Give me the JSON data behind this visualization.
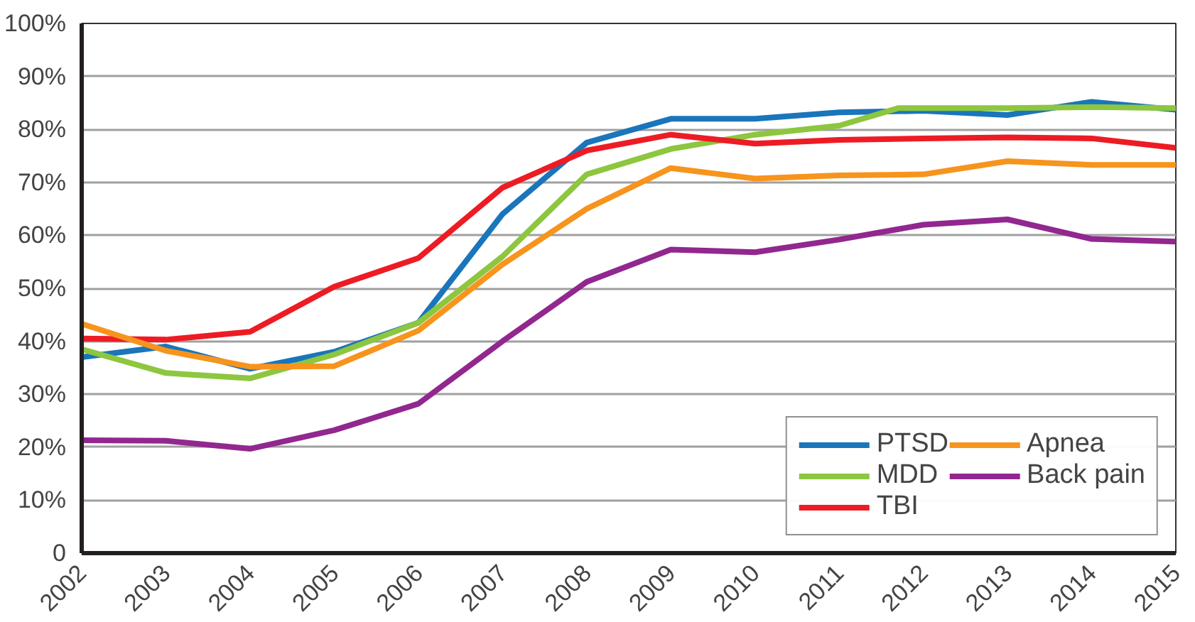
{
  "chart_data": {
    "type": "line",
    "x": [
      2002,
      2003,
      2004,
      2005,
      2006,
      2007,
      2008,
      2009,
      2010,
      2011,
      2012,
      2013,
      2014,
      2015
    ],
    "xlim": [
      2002,
      2015
    ],
    "xticks": [
      2002,
      2003,
      2004,
      2005,
      2006,
      2007,
      2008,
      2009,
      2010,
      2011,
      2012,
      2013,
      2014,
      2015
    ],
    "ylim": [
      0,
      100
    ],
    "yticks": [
      {
        "value": 0,
        "label": "0"
      },
      {
        "value": 10,
        "label": "10%"
      },
      {
        "value": 20,
        "label": "20%"
      },
      {
        "value": 30,
        "label": "30%"
      },
      {
        "value": 40,
        "label": "40%"
      },
      {
        "value": 50,
        "label": "50%"
      },
      {
        "value": 60,
        "label": "60%"
      },
      {
        "value": 70,
        "label": "70%"
      },
      {
        "value": 80,
        "label": "80%"
      },
      {
        "value": 90,
        "label": "90%"
      },
      {
        "value": 100,
        "label": "100%"
      }
    ],
    "grid": "y",
    "legend": "bottom right",
    "line_style": "solid",
    "series": [
      {
        "name": "PTSD",
        "color": "#1a75bb",
        "values": [
          37,
          39,
          34.8,
          38,
          43.5,
          64,
          77.5,
          82,
          82,
          83.2,
          83.5,
          82.7,
          85.2,
          83.7
        ]
      },
      {
        "name": "MDD",
        "color": "#8dc63f",
        "x": [
          2002,
          2003,
          2004,
          2005,
          2006,
          2007,
          2008,
          2009,
          2010,
          2011,
          2011.7,
          2013,
          2014,
          2015
        ],
        "values": [
          38.5,
          34,
          33,
          37.5,
          43.5,
          56,
          71.5,
          76.3,
          79,
          80.7,
          84,
          84,
          84.2,
          84
        ]
      },
      {
        "name": "TBI",
        "color": "#ed1c24",
        "values": [
          40.5,
          40.3,
          41.8,
          50.3,
          55.7,
          69,
          76,
          79,
          77.3,
          78,
          78.3,
          78.5,
          78.3,
          76.5
        ]
      },
      {
        "name": "Apnea",
        "color": "#f7941d",
        "values": [
          43.3,
          38.2,
          35.2,
          35.3,
          42,
          54.5,
          65,
          72.7,
          70.7,
          71.3,
          71.5,
          74,
          73.3,
          73.3
        ]
      },
      {
        "name": "Back pain",
        "color": "#92278f",
        "values": [
          21.3,
          21.2,
          19.7,
          23.2,
          28.2,
          40,
          51.2,
          57.3,
          56.8,
          59.2,
          62,
          63,
          59.3,
          58.8
        ]
      }
    ]
  }
}
